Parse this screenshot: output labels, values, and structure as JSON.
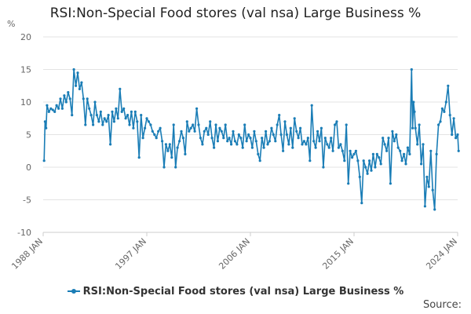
{
  "chart_data": {
    "type": "line",
    "title": "RSI:Non-Special Food stores (val nsa) Large Business %",
    "ylabel": "%",
    "xlabel": "",
    "ylim": [
      -10,
      20
    ],
    "yticks": [
      "20",
      "15",
      "10",
      "5",
      "0",
      "-5",
      "-10"
    ],
    "xticks": [
      "1988 JAN",
      "1997 JAN",
      "2006 JAN",
      "2015 JAN",
      "2024 JAN"
    ],
    "x_range": [
      "1988-01",
      "2024-01"
    ],
    "grid": true,
    "legend_position": "bottom",
    "color": "#1a7db6",
    "series": [
      {
        "name": "RSI:Non-Special Food stores (val nsa) Large Business %",
        "points": [
          [
            "1988-02",
            1.0
          ],
          [
            "1988-03",
            7.0
          ],
          [
            "1988-04",
            6.0
          ],
          [
            "1988-05",
            9.5
          ],
          [
            "1988-07",
            8.5
          ],
          [
            "1988-09",
            9.0
          ],
          [
            "1988-11",
            8.8
          ],
          [
            "1989-01",
            8.5
          ],
          [
            "1989-03",
            9.5
          ],
          [
            "1989-05",
            9.0
          ],
          [
            "1989-07",
            10.5
          ],
          [
            "1989-09",
            9.0
          ],
          [
            "1989-11",
            11.0
          ],
          [
            "1990-01",
            10.0
          ],
          [
            "1990-03",
            11.5
          ],
          [
            "1990-05",
            10.5
          ],
          [
            "1990-07",
            8.0
          ],
          [
            "1990-09",
            15.0
          ],
          [
            "1990-11",
            12.5
          ],
          [
            "1991-01",
            14.5
          ],
          [
            "1991-03",
            12.0
          ],
          [
            "1991-05",
            13.0
          ],
          [
            "1991-07",
            10.5
          ],
          [
            "1991-09",
            6.5
          ],
          [
            "1991-11",
            10.5
          ],
          [
            "1992-01",
            9.0
          ],
          [
            "1992-03",
            8.0
          ],
          [
            "1992-05",
            6.5
          ],
          [
            "1992-07",
            10.0
          ],
          [
            "1992-09",
            8.0
          ],
          [
            "1992-11",
            7.0
          ],
          [
            "1993-01",
            8.5
          ],
          [
            "1993-03",
            6.5
          ],
          [
            "1993-05",
            7.5
          ],
          [
            "1993-07",
            7.0
          ],
          [
            "1993-09",
            8.0
          ],
          [
            "1993-11",
            3.5
          ],
          [
            "1994-01",
            8.5
          ],
          [
            "1994-03",
            7.0
          ],
          [
            "1994-05",
            9.0
          ],
          [
            "1994-07",
            7.5
          ],
          [
            "1994-09",
            12.0
          ],
          [
            "1994-11",
            8.5
          ],
          [
            "1995-01",
            9.0
          ],
          [
            "1995-03",
            7.5
          ],
          [
            "1995-05",
            8.0
          ],
          [
            "1995-07",
            6.5
          ],
          [
            "1995-09",
            8.5
          ],
          [
            "1995-11",
            6.0
          ],
          [
            "1996-01",
            8.5
          ],
          [
            "1996-03",
            7.0
          ],
          [
            "1996-05",
            1.5
          ],
          [
            "1996-07",
            8.0
          ],
          [
            "1996-09",
            4.5
          ],
          [
            "1996-11",
            6.0
          ],
          [
            "1997-01",
            7.5
          ],
          [
            "1997-03",
            7.0
          ],
          [
            "1997-05",
            6.5
          ],
          [
            "1997-07",
            5.5
          ],
          [
            "1997-09",
            5.0
          ],
          [
            "1997-11",
            4.5
          ],
          [
            "1998-01",
            5.5
          ],
          [
            "1998-03",
            6.0
          ],
          [
            "1998-05",
            4.0
          ],
          [
            "1998-07",
            0.0
          ],
          [
            "1998-09",
            3.5
          ],
          [
            "1998-11",
            2.5
          ],
          [
            "1999-01",
            3.5
          ],
          [
            "1999-03",
            1.5
          ],
          [
            "1999-05",
            6.5
          ],
          [
            "1999-07",
            0.0
          ],
          [
            "1999-09",
            3.0
          ],
          [
            "1999-11",
            4.0
          ],
          [
            "2000-01",
            5.5
          ],
          [
            "2000-03",
            4.5
          ],
          [
            "2000-05",
            2.0
          ],
          [
            "2000-07",
            7.0
          ],
          [
            "2000-09",
            5.5
          ],
          [
            "2000-11",
            6.0
          ],
          [
            "2001-01",
            6.5
          ],
          [
            "2001-03",
            5.5
          ],
          [
            "2001-05",
            9.0
          ],
          [
            "2001-07",
            6.5
          ],
          [
            "2001-09",
            4.5
          ],
          [
            "2001-11",
            3.5
          ],
          [
            "2002-01",
            5.5
          ],
          [
            "2002-03",
            6.0
          ],
          [
            "2002-05",
            5.0
          ],
          [
            "2002-07",
            7.0
          ],
          [
            "2002-09",
            4.5
          ],
          [
            "2002-11",
            3.0
          ],
          [
            "2003-01",
            6.5
          ],
          [
            "2003-03",
            4.0
          ],
          [
            "2003-05",
            6.0
          ],
          [
            "2003-07",
            5.5
          ],
          [
            "2003-09",
            4.5
          ],
          [
            "2003-11",
            6.5
          ],
          [
            "2004-01",
            4.0
          ],
          [
            "2004-03",
            4.5
          ],
          [
            "2004-05",
            3.5
          ],
          [
            "2004-07",
            5.5
          ],
          [
            "2004-09",
            4.0
          ],
          [
            "2004-11",
            3.5
          ],
          [
            "2005-01",
            5.0
          ],
          [
            "2005-03",
            4.5
          ],
          [
            "2005-05",
            3.0
          ],
          [
            "2005-07",
            6.5
          ],
          [
            "2005-09",
            4.0
          ],
          [
            "2005-11",
            5.0
          ],
          [
            "2006-01",
            4.5
          ],
          [
            "2006-03",
            3.0
          ],
          [
            "2006-05",
            5.5
          ],
          [
            "2006-07",
            4.0
          ],
          [
            "2006-09",
            2.0
          ],
          [
            "2006-11",
            1.0
          ],
          [
            "2007-01",
            4.5
          ],
          [
            "2007-03",
            3.0
          ],
          [
            "2007-05",
            5.5
          ],
          [
            "2007-07",
            3.5
          ],
          [
            "2007-09",
            4.0
          ],
          [
            "2007-11",
            6.0
          ],
          [
            "2008-01",
            5.0
          ],
          [
            "2008-03",
            4.0
          ],
          [
            "2008-05",
            6.5
          ],
          [
            "2008-07",
            8.0
          ],
          [
            "2008-09",
            5.0
          ],
          [
            "2008-11",
            2.5
          ],
          [
            "2009-01",
            7.0
          ],
          [
            "2009-03",
            5.0
          ],
          [
            "2009-05",
            3.5
          ],
          [
            "2009-07",
            6.0
          ],
          [
            "2009-09",
            3.0
          ],
          [
            "2009-11",
            7.5
          ],
          [
            "2010-01",
            5.5
          ],
          [
            "2010-03",
            4.5
          ],
          [
            "2010-05",
            6.0
          ],
          [
            "2010-07",
            3.5
          ],
          [
            "2010-09",
            4.0
          ],
          [
            "2010-11",
            3.5
          ],
          [
            "2011-01",
            4.5
          ],
          [
            "2011-03",
            1.0
          ],
          [
            "2011-05",
            9.5
          ],
          [
            "2011-07",
            4.0
          ],
          [
            "2011-09",
            3.0
          ],
          [
            "2011-11",
            5.5
          ],
          [
            "2012-01",
            4.0
          ],
          [
            "2012-03",
            6.0
          ],
          [
            "2012-05",
            0.0
          ],
          [
            "2012-07",
            4.5
          ],
          [
            "2012-09",
            3.5
          ],
          [
            "2012-11",
            3.0
          ],
          [
            "2013-01",
            4.5
          ],
          [
            "2013-03",
            2.5
          ],
          [
            "2013-05",
            6.5
          ],
          [
            "2013-07",
            7.0
          ],
          [
            "2013-09",
            3.0
          ],
          [
            "2013-11",
            3.5
          ],
          [
            "2014-01",
            2.5
          ],
          [
            "2014-03",
            1.0
          ],
          [
            "2014-05",
            6.5
          ],
          [
            "2014-07",
            -2.5
          ],
          [
            "2014-09",
            2.5
          ],
          [
            "2014-11",
            1.5
          ],
          [
            "2015-01",
            2.0
          ],
          [
            "2015-03",
            2.5
          ],
          [
            "2015-05",
            1.0
          ],
          [
            "2015-07",
            -1.5
          ],
          [
            "2015-09",
            -5.5
          ],
          [
            "2015-11",
            1.0
          ],
          [
            "2016-01",
            0.0
          ],
          [
            "2016-03",
            -1.0
          ],
          [
            "2016-05",
            1.0
          ],
          [
            "2016-07",
            -0.5
          ],
          [
            "2016-09",
            2.0
          ],
          [
            "2016-11",
            0.0
          ],
          [
            "2017-01",
            2.0
          ],
          [
            "2017-03",
            1.5
          ],
          [
            "2017-05",
            0.5
          ],
          [
            "2017-07",
            4.5
          ],
          [
            "2017-09",
            3.5
          ],
          [
            "2017-11",
            2.5
          ],
          [
            "2018-01",
            4.5
          ],
          [
            "2018-03",
            -2.5
          ],
          [
            "2018-05",
            5.5
          ],
          [
            "2018-07",
            4.0
          ],
          [
            "2018-09",
            5.0
          ],
          [
            "2018-11",
            3.0
          ],
          [
            "2019-01",
            2.5
          ],
          [
            "2019-03",
            1.0
          ],
          [
            "2019-05",
            2.0
          ],
          [
            "2019-07",
            0.5
          ],
          [
            "2019-09",
            3.0
          ],
          [
            "2019-11",
            2.0
          ],
          [
            "2020-01",
            15.0
          ],
          [
            "2020-02",
            6.0
          ],
          [
            "2020-03",
            10.0
          ],
          [
            "2020-04",
            8.5
          ],
          [
            "2020-05",
            6.0
          ],
          [
            "2020-07",
            3.5
          ],
          [
            "2020-09",
            6.5
          ],
          [
            "2020-11",
            0.5
          ],
          [
            "2021-01",
            3.5
          ],
          [
            "2021-03",
            -6.0
          ],
          [
            "2021-05",
            -1.5
          ],
          [
            "2021-07",
            -3.0
          ],
          [
            "2021-09",
            2.5
          ],
          [
            "2021-11",
            -3.5
          ],
          [
            "2022-01",
            -6.5
          ],
          [
            "2022-03",
            2.0
          ],
          [
            "2022-05",
            6.5
          ],
          [
            "2022-07",
            7.0
          ],
          [
            "2022-09",
            9.0
          ],
          [
            "2022-11",
            8.5
          ],
          [
            "2023-01",
            10.0
          ],
          [
            "2023-03",
            12.5
          ],
          [
            "2023-05",
            8.0
          ],
          [
            "2023-07",
            5.0
          ],
          [
            "2023-09",
            7.5
          ],
          [
            "2023-11",
            4.5
          ],
          [
            "2024-01",
            5.0
          ],
          [
            "2024-02",
            2.5
          ]
        ]
      }
    ]
  },
  "legend": {
    "label": "RSI:Non-Special Food stores (val nsa) Large Business %"
  },
  "source": {
    "label": "Source:"
  }
}
